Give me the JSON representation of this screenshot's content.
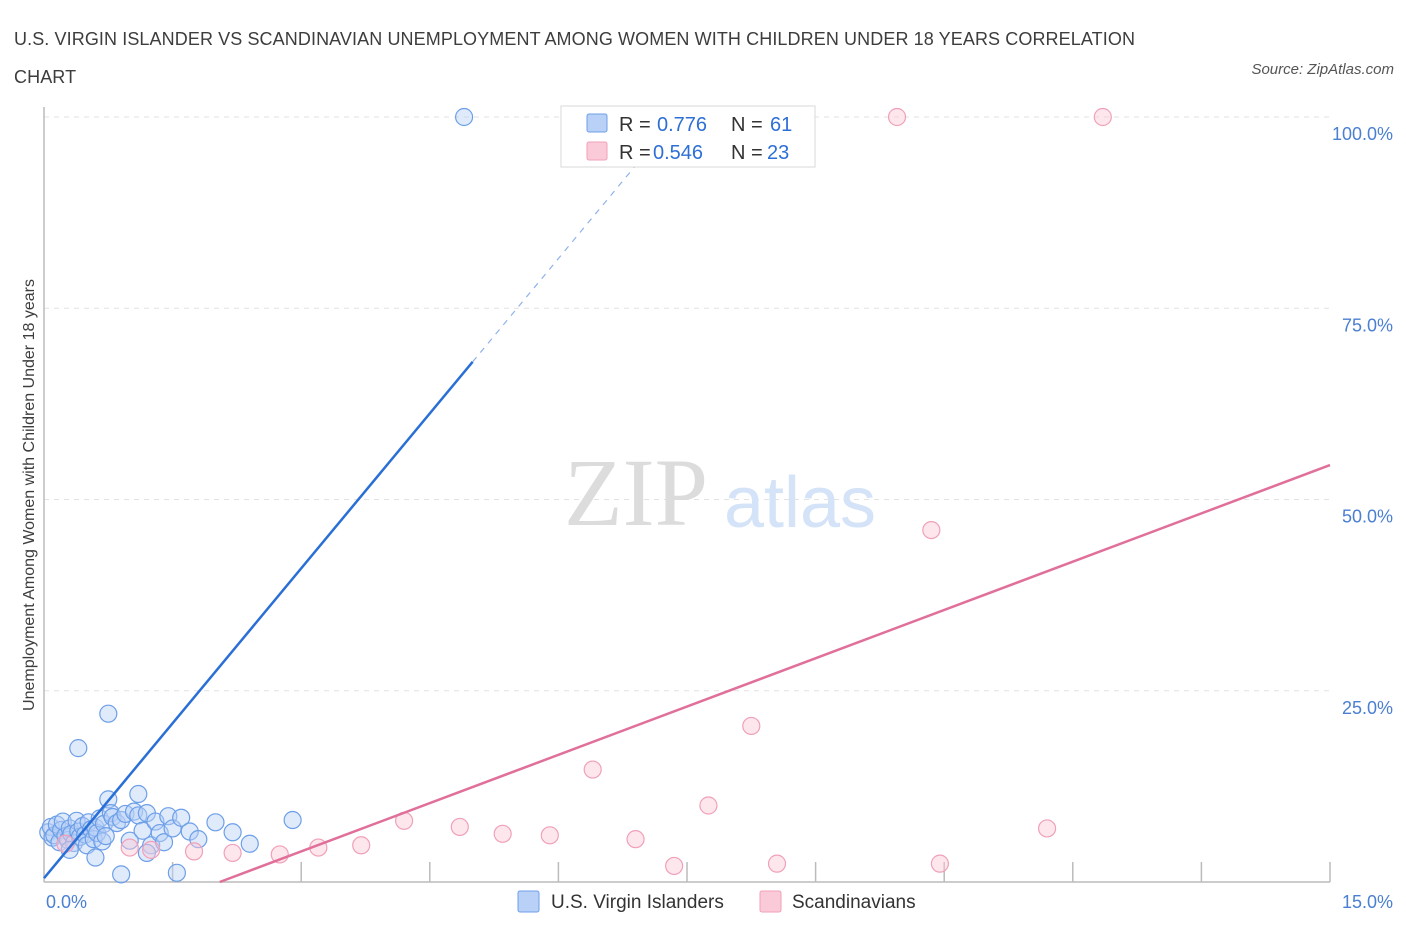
{
  "title": "U.S. VIRGIN ISLANDER VS SCANDINAVIAN UNEMPLOYMENT AMONG WOMEN WITH CHILDREN UNDER 18 YEARS CORRELATION CHART",
  "source": "Source: ZipAtlas.com",
  "watermark": {
    "zip": "ZIP",
    "atlas": "atlas"
  },
  "chart_data": {
    "type": "scatter",
    "title": "U.S. VIRGIN ISLANDER VS SCANDINAVIAN UNEMPLOYMENT AMONG WOMEN WITH CHILDREN UNDER 18 YEARS CORRELATION CHART",
    "xlabel": "",
    "ylabel": "Unemployment Among Women with Children Under 18 years",
    "xlim": [
      0,
      15
    ],
    "ylim": [
      0,
      100
    ],
    "x_tick_labels": [
      "0.0%",
      "15.0%"
    ],
    "y_ticks": [
      25,
      50,
      75,
      100
    ],
    "y_tick_labels": [
      "25.0%",
      "50.0%",
      "75.0%",
      "100.0%"
    ],
    "grid": true,
    "legend_position": "top-center",
    "series": [
      {
        "name": "U.S. Virgin Islanders",
        "color": "#6d9fe8",
        "line_color": "#2a6fd6",
        "R": "0.776",
        "N": "61",
        "trend": {
          "x_start": 0.0,
          "y_start": 0.5,
          "x_solid_end": 5.0,
          "y_solid_end": 68.0,
          "x_dash_end": 7.0,
          "y_dash_end": 95.0
        },
        "points": [
          [
            0.05,
            6.5
          ],
          [
            0.08,
            7.2
          ],
          [
            0.1,
            5.8
          ],
          [
            0.12,
            6.1
          ],
          [
            0.15,
            7.5
          ],
          [
            0.18,
            5.2
          ],
          [
            0.2,
            6.8
          ],
          [
            0.22,
            7.9
          ],
          [
            0.25,
            6.0
          ],
          [
            0.28,
            5.5
          ],
          [
            0.3,
            7.0
          ],
          [
            0.32,
            6.3
          ],
          [
            0.35,
            5.1
          ],
          [
            0.38,
            8.0
          ],
          [
            0.4,
            6.6
          ],
          [
            0.42,
            5.9
          ],
          [
            0.45,
            7.3
          ],
          [
            0.48,
            6.2
          ],
          [
            0.5,
            4.8
          ],
          [
            0.52,
            7.8
          ],
          [
            0.55,
            6.9
          ],
          [
            0.58,
            5.6
          ],
          [
            0.6,
            7.1
          ],
          [
            0.62,
            6.4
          ],
          [
            0.65,
            8.3
          ],
          [
            0.68,
            5.3
          ],
          [
            0.7,
            7.6
          ],
          [
            0.72,
            6.0
          ],
          [
            0.75,
            10.8
          ],
          [
            0.78,
            9.0
          ],
          [
            0.8,
            8.5
          ],
          [
            0.85,
            7.7
          ],
          [
            0.9,
            8.1
          ],
          [
            0.95,
            8.9
          ],
          [
            1.0,
            5.4
          ],
          [
            1.05,
            9.2
          ],
          [
            1.1,
            8.7
          ],
          [
            1.15,
            6.7
          ],
          [
            1.2,
            9.0
          ],
          [
            1.25,
            4.8
          ],
          [
            1.3,
            7.9
          ],
          [
            1.35,
            6.4
          ],
          [
            1.4,
            5.2
          ],
          [
            1.45,
            8.6
          ],
          [
            1.5,
            7.0
          ],
          [
            1.6,
            8.4
          ],
          [
            1.7,
            6.6
          ],
          [
            1.8,
            5.6
          ],
          [
            2.0,
            7.8
          ],
          [
            2.2,
            6.5
          ],
          [
            2.4,
            5.0
          ],
          [
            0.4,
            17.5
          ],
          [
            0.75,
            22.0
          ],
          [
            1.1,
            11.5
          ],
          [
            0.6,
            3.2
          ],
          [
            0.9,
            1.0
          ],
          [
            1.2,
            3.8
          ],
          [
            1.55,
            1.2
          ],
          [
            0.3,
            4.2
          ],
          [
            2.9,
            8.1
          ],
          [
            4.9,
            100.0
          ]
        ]
      },
      {
        "name": "Scandinavians",
        "color": "#f0a0b8",
        "line_color": "#e0709a",
        "R": "0.546",
        "N": "23",
        "trend": {
          "x_start": 2.05,
          "y_start": 0.0,
          "x_end": 15.0,
          "y_end": 54.5
        },
        "points": [
          [
            0.25,
            5.0
          ],
          [
            1.0,
            4.5
          ],
          [
            1.25,
            4.2
          ],
          [
            1.75,
            4.0
          ],
          [
            2.2,
            3.8
          ],
          [
            2.75,
            3.6
          ],
          [
            3.2,
            4.5
          ],
          [
            3.7,
            4.8
          ],
          [
            4.2,
            8.0
          ],
          [
            4.85,
            7.2
          ],
          [
            5.35,
            6.3
          ],
          [
            5.9,
            6.1
          ],
          [
            6.4,
            14.7
          ],
          [
            6.9,
            5.6
          ],
          [
            7.35,
            2.1
          ],
          [
            7.75,
            10.0
          ],
          [
            8.25,
            20.4
          ],
          [
            8.55,
            2.4
          ],
          [
            10.35,
            46.0
          ],
          [
            10.45,
            2.4
          ],
          [
            11.7,
            7.0
          ],
          [
            9.95,
            100.0
          ],
          [
            12.35,
            100.0
          ]
        ]
      }
    ]
  }
}
